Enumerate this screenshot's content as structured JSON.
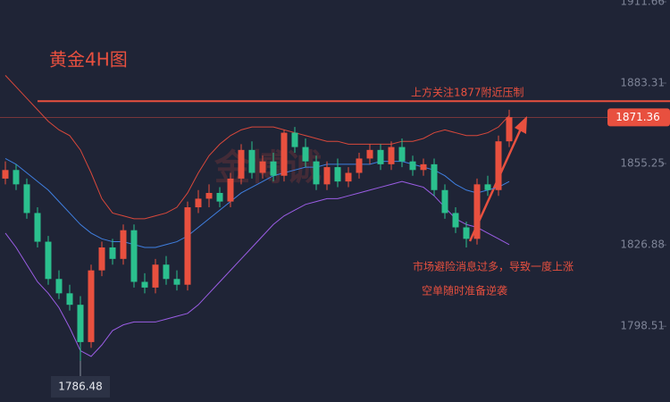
{
  "chart_data": {
    "type": "candlestick",
    "title": "黄金4H图",
    "watermark": "金博诚",
    "up_color": "#e8503f",
    "down_color": "#2bc08e",
    "ylim": [
      1772.1,
      1912.28
    ],
    "yticks": [
      1911.66,
      1883.31,
      1855.25,
      1826.88,
      1798.51
    ],
    "grid": false,
    "open": [
      1850,
      1853,
      1848,
      1838,
      1828,
      1815,
      1810,
      1806,
      1793,
      1818,
      1826,
      1822,
      1832,
      1814,
      1812,
      1820,
      1815,
      1813,
      1840,
      1843,
      1845,
      1842,
      1850,
      1860,
      1852,
      1856,
      1851,
      1866,
      1861,
      1856,
      1848,
      1854,
      1849,
      1852,
      1857,
      1860,
      1855,
      1861,
      1856,
      1853,
      1855,
      1846,
      1838,
      1833,
      1829,
      1848,
      1846,
      1863
    ],
    "high": [
      1856,
      1855,
      1850,
      1840,
      1830,
      1818,
      1813,
      1809,
      1820,
      1828,
      1829,
      1834,
      1834,
      1817,
      1822,
      1823,
      1818,
      1842,
      1846,
      1848,
      1847,
      1852,
      1862,
      1863,
      1858,
      1859,
      1867,
      1868,
      1864,
      1858,
      1856,
      1857,
      1854,
      1859,
      1862,
      1862,
      1863,
      1864,
      1858,
      1857,
      1857,
      1848,
      1840,
      1835,
      1850,
      1851,
      1865,
      1874
    ],
    "low": [
      1848,
      1846,
      1836,
      1826,
      1813,
      1808,
      1804,
      1786.48,
      1791,
      1816,
      1820,
      1820,
      1812,
      1810,
      1810,
      1813,
      1811,
      1811,
      1838,
      1840,
      1840,
      1840,
      1848,
      1850,
      1850,
      1849,
      1849,
      1859,
      1854,
      1846,
      1846,
      1847,
      1847,
      1850,
      1855,
      1853,
      1853,
      1854,
      1851,
      1851,
      1844,
      1836,
      1831,
      1826,
      1827,
      1844,
      1844,
      1861
    ],
    "close": [
      1853,
      1848,
      1838,
      1828,
      1815,
      1810,
      1806,
      1793,
      1818,
      1826,
      1822,
      1832,
      1814,
      1812,
      1820,
      1815,
      1813,
      1840,
      1843,
      1845,
      1842,
      1850,
      1860,
      1852,
      1856,
      1851,
      1866,
      1861,
      1856,
      1848,
      1854,
      1849,
      1852,
      1857,
      1860,
      1855,
      1861,
      1856,
      1853,
      1855,
      1846,
      1838,
      1833,
      1829,
      1848,
      1846,
      1863,
      1871.36
    ],
    "bands": [
      {
        "color": "#d9483b",
        "values": [
          1886,
          1882,
          1878,
          1874,
          1870,
          1867,
          1865,
          1860,
          1852,
          1843,
          1838,
          1837,
          1836,
          1836,
          1837,
          1838,
          1840,
          1845,
          1852,
          1858,
          1862,
          1865,
          1867,
          1868,
          1868,
          1868,
          1867,
          1866,
          1865,
          1864,
          1863,
          1863,
          1862,
          1862,
          1862,
          1862,
          1862,
          1863,
          1863,
          1864,
          1866,
          1867,
          1866,
          1865,
          1865,
          1866,
          1868,
          1872
        ]
      },
      {
        "color": "#3f7fe0",
        "values": [
          1857,
          1855,
          1852,
          1849,
          1846,
          1842,
          1838,
          1834,
          1831,
          1829,
          1828,
          1828,
          1827,
          1826,
          1826,
          1827,
          1828,
          1830,
          1833,
          1836,
          1839,
          1842,
          1845,
          1847,
          1849,
          1851,
          1852,
          1853,
          1854,
          1854,
          1855,
          1855,
          1855,
          1855,
          1855,
          1856,
          1856,
          1856,
          1855,
          1854,
          1853,
          1851,
          1848,
          1846,
          1845,
          1846,
          1847,
          1849
        ]
      },
      {
        "color": "#9b5de5",
        "values": [
          1831,
          1826,
          1820,
          1814,
          1810,
          1805,
          1798,
          1790,
          1788,
          1792,
          1797,
          1799,
          1800,
          1800,
          1800,
          1801,
          1802,
          1803,
          1806,
          1810,
          1814,
          1818,
          1822,
          1826,
          1830,
          1834,
          1837,
          1839,
          1841,
          1842,
          1843,
          1843,
          1844,
          1845,
          1846,
          1847,
          1848,
          1849,
          1848,
          1847,
          1844,
          1840,
          1836,
          1834,
          1833,
          1831,
          1829,
          1827
        ]
      }
    ],
    "resistance": 1877,
    "annotations": [
      "上方关注1877附近压制",
      "市场避险消息过多，导致一度上涨",
      "空单随时准备逆袭"
    ]
  }
}
